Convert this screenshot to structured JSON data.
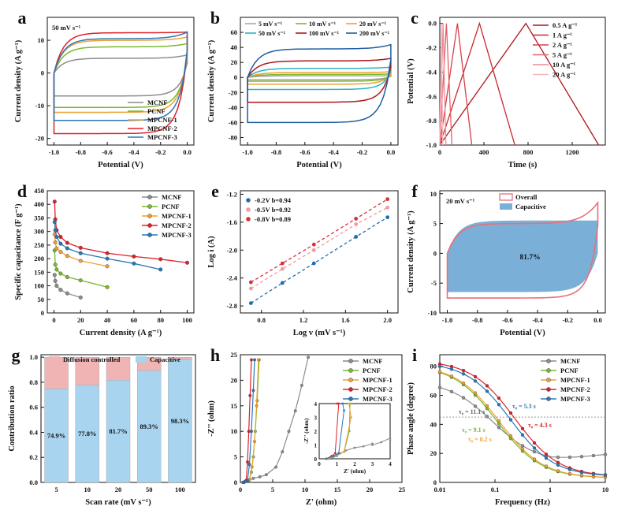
{
  "colors": {
    "MCNF": "#8c8c8c",
    "PCNF": "#7cb82f",
    "MPCNF-1": "#f0a030",
    "MPCNF-2": "#e0202a",
    "MPCNF-3": "#2878b8",
    "s5": "#a8a8a8",
    "s10": "#7cb82f",
    "s20": "#f0a030",
    "s50": "#2bb2c8",
    "s100": "#b0151a",
    "s200": "#1f5fa0",
    "c05": "#b0151a",
    "c1": "#c8282e",
    "c2": "#d64048",
    "c5": "#e2606a",
    "c10": "#ec8c94",
    "c20": "#f5b8be",
    "e02": "#1f6db0",
    "e05": "#f09aa2",
    "e08": "#d83038",
    "overall": "#e8707a",
    "capacitive": "#7ab0d8",
    "diffusion": "#f0b4b4",
    "capbar": "#a8d4f0"
  },
  "chart_data": [
    {
      "panel": "a",
      "type": "line",
      "annotation": "50 mV s⁻¹",
      "xlabel": "Potential (V)",
      "ylabel": "Current density (A g⁻¹)",
      "xlim": [
        -1.05,
        0.05
      ],
      "ylim": [
        -22,
        17
      ],
      "xticks": [
        "-1.0",
        "-0.8",
        "-0.6",
        "-0.4",
        "-0.2",
        "0.0"
      ],
      "yticks": [
        "-20",
        "-10",
        "0",
        "10"
      ],
      "legend": [
        "MCNF",
        "PCNF",
        "MPCNF-1",
        "MPCNF-2",
        "MPCNF-3"
      ],
      "legend_position": "bottom-right",
      "series": [
        {
          "name": "MCNF",
          "upper": 4.5,
          "lower": -7,
          "tip": 5.5
        },
        {
          "name": "PCNF",
          "upper": 8,
          "lower": -10.5,
          "tip": 9
        },
        {
          "name": "MPCNF-1",
          "upper": 10,
          "lower": -12,
          "tip": 11
        },
        {
          "name": "MPCNF-2",
          "upper": 12.3,
          "lower": -18.5,
          "tip": 12.5
        },
        {
          "name": "MPCNF-3",
          "upper": 10.5,
          "lower": -14.5,
          "tip": 12.5
        }
      ]
    },
    {
      "panel": "b",
      "type": "line",
      "xlabel": "Potential (V)",
      "ylabel": "Current density (A g⁻¹)",
      "xlim": [
        -1.05,
        0.05
      ],
      "ylim": [
        -90,
        80
      ],
      "xticks": [
        "-1.0",
        "-0.8",
        "-0.6",
        "-0.4",
        "-0.2",
        "0.0"
      ],
      "yticks": [
        "-80",
        "-60",
        "-40",
        "-20",
        "0",
        "20",
        "40",
        "60"
      ],
      "legend": [
        "5 mV s⁻¹",
        "10 mV s⁻¹",
        "20 mV s⁻¹",
        "50 mV s⁻¹",
        "100 mV s⁻¹",
        "200 mV s⁻¹"
      ],
      "legend_position": "top",
      "series": [
        {
          "name": "5 mV s⁻¹",
          "upper": 2,
          "lower": -3
        },
        {
          "name": "10 mV s⁻¹",
          "upper": 4,
          "lower": -5
        },
        {
          "name": "20 mV s⁻¹",
          "upper": 6.5,
          "lower": -9
        },
        {
          "name": "50 mV s⁻¹",
          "upper": 12,
          "lower": -16
        },
        {
          "name": "100 mV s⁻¹",
          "upper": 22,
          "lower": -33
        },
        {
          "name": "200 mV s⁻¹",
          "upper": 38,
          "lower": -60
        }
      ]
    },
    {
      "panel": "c",
      "type": "line",
      "xlabel": "Time (s)",
      "ylabel": "Potential (V)",
      "xlim": [
        0,
        1500
      ],
      "ylim": [
        -1.0,
        0.05
      ],
      "xticks": [
        "0",
        "400",
        "800",
        "1200"
      ],
      "yticks": [
        "-1.0",
        "-0.8",
        "-0.6",
        "-0.4",
        "-0.2",
        "0.0"
      ],
      "legend": [
        "0.5 A g⁻¹",
        "1 A g⁻¹",
        "2 A g⁻¹",
        "5 A g⁻¹",
        "10 A g⁻¹",
        "20 A g⁻¹"
      ],
      "legend_position": "top-right",
      "series": [
        {
          "name": "0.5 A g⁻¹",
          "peak": 780,
          "end": 1440
        },
        {
          "name": "1 A g⁻¹",
          "peak": 360,
          "end": 680
        },
        {
          "name": "2 A g⁻¹",
          "peak": 160,
          "end": 290
        },
        {
          "name": "5 A g⁻¹",
          "peak": 60,
          "end": 110
        },
        {
          "name": "10 A g⁻¹",
          "peak": 30,
          "end": 55
        },
        {
          "name": "20 A g⁻¹",
          "peak": 14,
          "end": 27
        }
      ]
    },
    {
      "panel": "d",
      "type": "line",
      "xlabel": "Current density (A g⁻¹)",
      "ylabel": "Specific capacitance (F g⁻¹)",
      "xlim": [
        -5,
        105
      ],
      "ylim": [
        0,
        450
      ],
      "xticks": [
        "0",
        "20",
        "40",
        "60",
        "80",
        "100"
      ],
      "yticks": [
        "0",
        "50",
        "100",
        "150",
        "200",
        "250",
        "300",
        "350",
        "400",
        "450"
      ],
      "legend": [
        "MCNF",
        "PCNF",
        "MPCNF-1",
        "MPCNF-2",
        "MPCNF-3"
      ],
      "legend_position": "top-right",
      "series": [
        {
          "name": "MCNF",
          "x": [
            0.5,
            1,
            2,
            5,
            10,
            20
          ],
          "values": [
            140,
            118,
            100,
            85,
            72,
            57
          ]
        },
        {
          "name": "PCNF",
          "x": [
            0.5,
            1,
            2,
            5,
            10,
            20,
            40
          ],
          "values": [
            230,
            178,
            160,
            145,
            132,
            120,
            95
          ]
        },
        {
          "name": "MPCNF-1",
          "x": [
            0.5,
            1,
            2,
            5,
            10,
            20,
            40
          ],
          "values": [
            290,
            260,
            238,
            225,
            210,
            192,
            172
          ]
        },
        {
          "name": "MPCNF-2",
          "x": [
            0.5,
            1,
            2,
            5,
            10,
            20,
            40,
            60,
            80,
            100
          ],
          "values": [
            410,
            345,
            305,
            280,
            258,
            240,
            220,
            208,
            198,
            185
          ]
        },
        {
          "name": "MPCNF-3",
          "x": [
            0.5,
            1,
            2,
            5,
            10,
            20,
            40,
            60,
            80
          ],
          "values": [
            335,
            305,
            280,
            255,
            238,
            220,
            200,
            182,
            160
          ]
        }
      ]
    },
    {
      "panel": "e",
      "type": "scatter",
      "xlabel": "Log v (mV s⁻¹)",
      "ylabel": "Log i (A)",
      "xlim": [
        0.6,
        2.1
      ],
      "ylim": [
        -2.9,
        -1.15
      ],
      "xticks": [
        "0.8",
        "1.2",
        "1.6",
        "2.0"
      ],
      "yticks": [
        "-2.8",
        "-2.4",
        "-2.0",
        "-1.6",
        "-1.2"
      ],
      "legend": [
        "-0.2V  b=0.94",
        "-0.5V  b=0.92",
        "-0.8V  b=0.89"
      ],
      "legend_position": "top-left",
      "series": [
        {
          "name": "-0.2V  b=0.94",
          "x": [
            0.7,
            1.0,
            1.3,
            1.7,
            2.0
          ],
          "values": [
            -2.76,
            -2.47,
            -2.19,
            -1.81,
            -1.53
          ]
        },
        {
          "name": "-0.5V  b=0.92",
          "x": [
            0.7,
            1.0,
            1.3,
            1.7,
            2.0
          ],
          "values": [
            -2.55,
            -2.27,
            -2.0,
            -1.63,
            -1.39
          ]
        },
        {
          "name": "-0.8V  b=0.89",
          "x": [
            0.7,
            1.0,
            1.3,
            1.7,
            2.0
          ],
          "values": [
            -2.46,
            -2.19,
            -1.92,
            -1.55,
            -1.27
          ]
        }
      ]
    },
    {
      "panel": "f",
      "type": "area",
      "annotation": "20 mV s⁻¹",
      "center_label": "81.7%",
      "xlabel": "Potential (V)",
      "ylabel": "Current density (A g⁻¹)",
      "xlim": [
        -1.05,
        0.05
      ],
      "ylim": [
        -10,
        10.5
      ],
      "xticks": [
        "-1.0",
        "-0.8",
        "-0.6",
        "-0.4",
        "-0.2",
        "0.0"
      ],
      "yticks": [
        "-10",
        "-5",
        "0",
        "5",
        "10"
      ],
      "legend": [
        "Overall",
        "Capacitive"
      ],
      "legend_position": "top",
      "series": [
        {
          "name": "Overall",
          "upper": 5,
          "lower": -7.5,
          "tip": 8.5
        },
        {
          "name": "Capacitive",
          "upper": 5.5,
          "lower": -6.5
        }
      ]
    },
    {
      "panel": "g",
      "type": "bar",
      "xlabel": "Scan rate (mV s⁻¹)",
      "ylabel": "Contribution ratio",
      "ylim": [
        0,
        1.02
      ],
      "categories": [
        "5",
        "10",
        "20",
        "50",
        "100"
      ],
      "yticks": [
        "0.0",
        "0.2",
        "0.4",
        "0.6",
        "0.8",
        "1.0"
      ],
      "legend": [
        "Diffusion controlled",
        "Capacitive"
      ],
      "legend_position": "top",
      "series": [
        {
          "name": "Capacitive",
          "values": [
            0.749,
            0.778,
            0.817,
            0.893,
            0.983
          ]
        },
        {
          "name": "Diffusion controlled",
          "values": [
            0.251,
            0.222,
            0.183,
            0.107,
            0.017
          ]
        }
      ],
      "data_labels": [
        "74.9%",
        "77.8%",
        "81.7%",
        "89.3%",
        "98.3%"
      ]
    },
    {
      "panel": "h",
      "type": "scatter",
      "xlabel": "Z' (ohm)",
      "ylabel": "-Z'' (ohm)",
      "xlim": [
        0,
        25
      ],
      "ylim": [
        0,
        25
      ],
      "xticks": [
        "0",
        "5",
        "10",
        "15",
        "20",
        "25"
      ],
      "yticks": [
        "0",
        "5",
        "10",
        "15",
        "20",
        "25"
      ],
      "legend": [
        "MCNF",
        "PCNF",
        "MPCNF-1",
        "MPCNF-2",
        "MPCNF-3"
      ],
      "legend_position": "top-right",
      "inset": {
        "xlabel": "Z' (ohm)",
        "ylabel": "-Z'' (ohm)",
        "xlim": [
          0,
          4
        ],
        "ylim": [
          0,
          4
        ],
        "xticks": [
          "0",
          "1",
          "2",
          "3",
          "4"
        ],
        "yticks": [
          "0",
          "1",
          "2",
          "3",
          "4"
        ]
      },
      "series": [
        {
          "name": "MCNF",
          "x": [
            0.6,
            1.2,
            2.0,
            3.0,
            4.0,
            5.5,
            6.5,
            7.5,
            8.5,
            9.5,
            10.5
          ],
          "values": [
            0,
            0.4,
            0.8,
            1.1,
            1.5,
            3,
            6,
            10,
            14,
            19,
            24.5
          ]
        },
        {
          "name": "PCNF",
          "x": [
            0.5,
            1.0,
            1.4,
            1.7,
            2.0,
            2.3,
            2.6,
            2.9
          ],
          "values": [
            0,
            0.3,
            0.5,
            2,
            5,
            10,
            16,
            24
          ]
        },
        {
          "name": "MPCNF-1",
          "x": [
            0.5,
            1.0,
            1.4,
            1.8,
            2.2,
            2.5,
            2.8
          ],
          "values": [
            0,
            0.3,
            0.5,
            3,
            8,
            15,
            24
          ]
        },
        {
          "name": "MPCNF-2",
          "x": [
            0.4,
            0.7,
            0.9,
            1.1,
            1.3,
            1.5,
            1.7
          ],
          "values": [
            0,
            0.2,
            0.4,
            4,
            10,
            17,
            24
          ]
        },
        {
          "name": "MPCNF-3",
          "x": [
            0.4,
            0.8,
            1.1,
            1.4,
            1.7,
            2.0,
            2.2
          ],
          "values": [
            0,
            0.2,
            0.4,
            3.5,
            10,
            18,
            24
          ]
        }
      ]
    },
    {
      "panel": "i",
      "type": "line",
      "xlabel": "Frequency (Hz)",
      "ylabel": "Phase angle (degree)",
      "xlim": [
        0.01,
        10
      ],
      "ylim": [
        0,
        88
      ],
      "xscale": "log",
      "xticks": [
        "0.01",
        "0.1",
        "1",
        "10"
      ],
      "yticks": [
        "0",
        "20",
        "40",
        "60",
        "80"
      ],
      "legend": [
        "MCNF",
        "PCNF",
        "MPCNF-1",
        "MPCNF-2",
        "MPCNF-3"
      ],
      "legend_position": "top-right",
      "annotations": [
        "τ₀ = 11.1 s",
        "τ₀ = 9.1 s",
        "τ₀ = 8.2 s",
        "τ₀ = 5.3 s",
        "τ₀ = 4.3 s"
      ],
      "series": [
        {
          "name": "MCNF",
          "f0": 0.09,
          "high": 70,
          "low": 14,
          "rise": 20
        },
        {
          "name": "PCNF",
          "f0": 0.11,
          "high": 81,
          "low": 3,
          "rise": 0
        },
        {
          "name": "MPCNF-1",
          "f0": 0.12,
          "high": 81,
          "low": 3,
          "rise": 0
        },
        {
          "name": "MPCNF-2",
          "f0": 0.23,
          "high": 84,
          "low": 4,
          "rise": 0
        },
        {
          "name": "MPCNF-3",
          "f0": 0.19,
          "high": 83,
          "low": 4,
          "rise": 0
        }
      ]
    }
  ]
}
